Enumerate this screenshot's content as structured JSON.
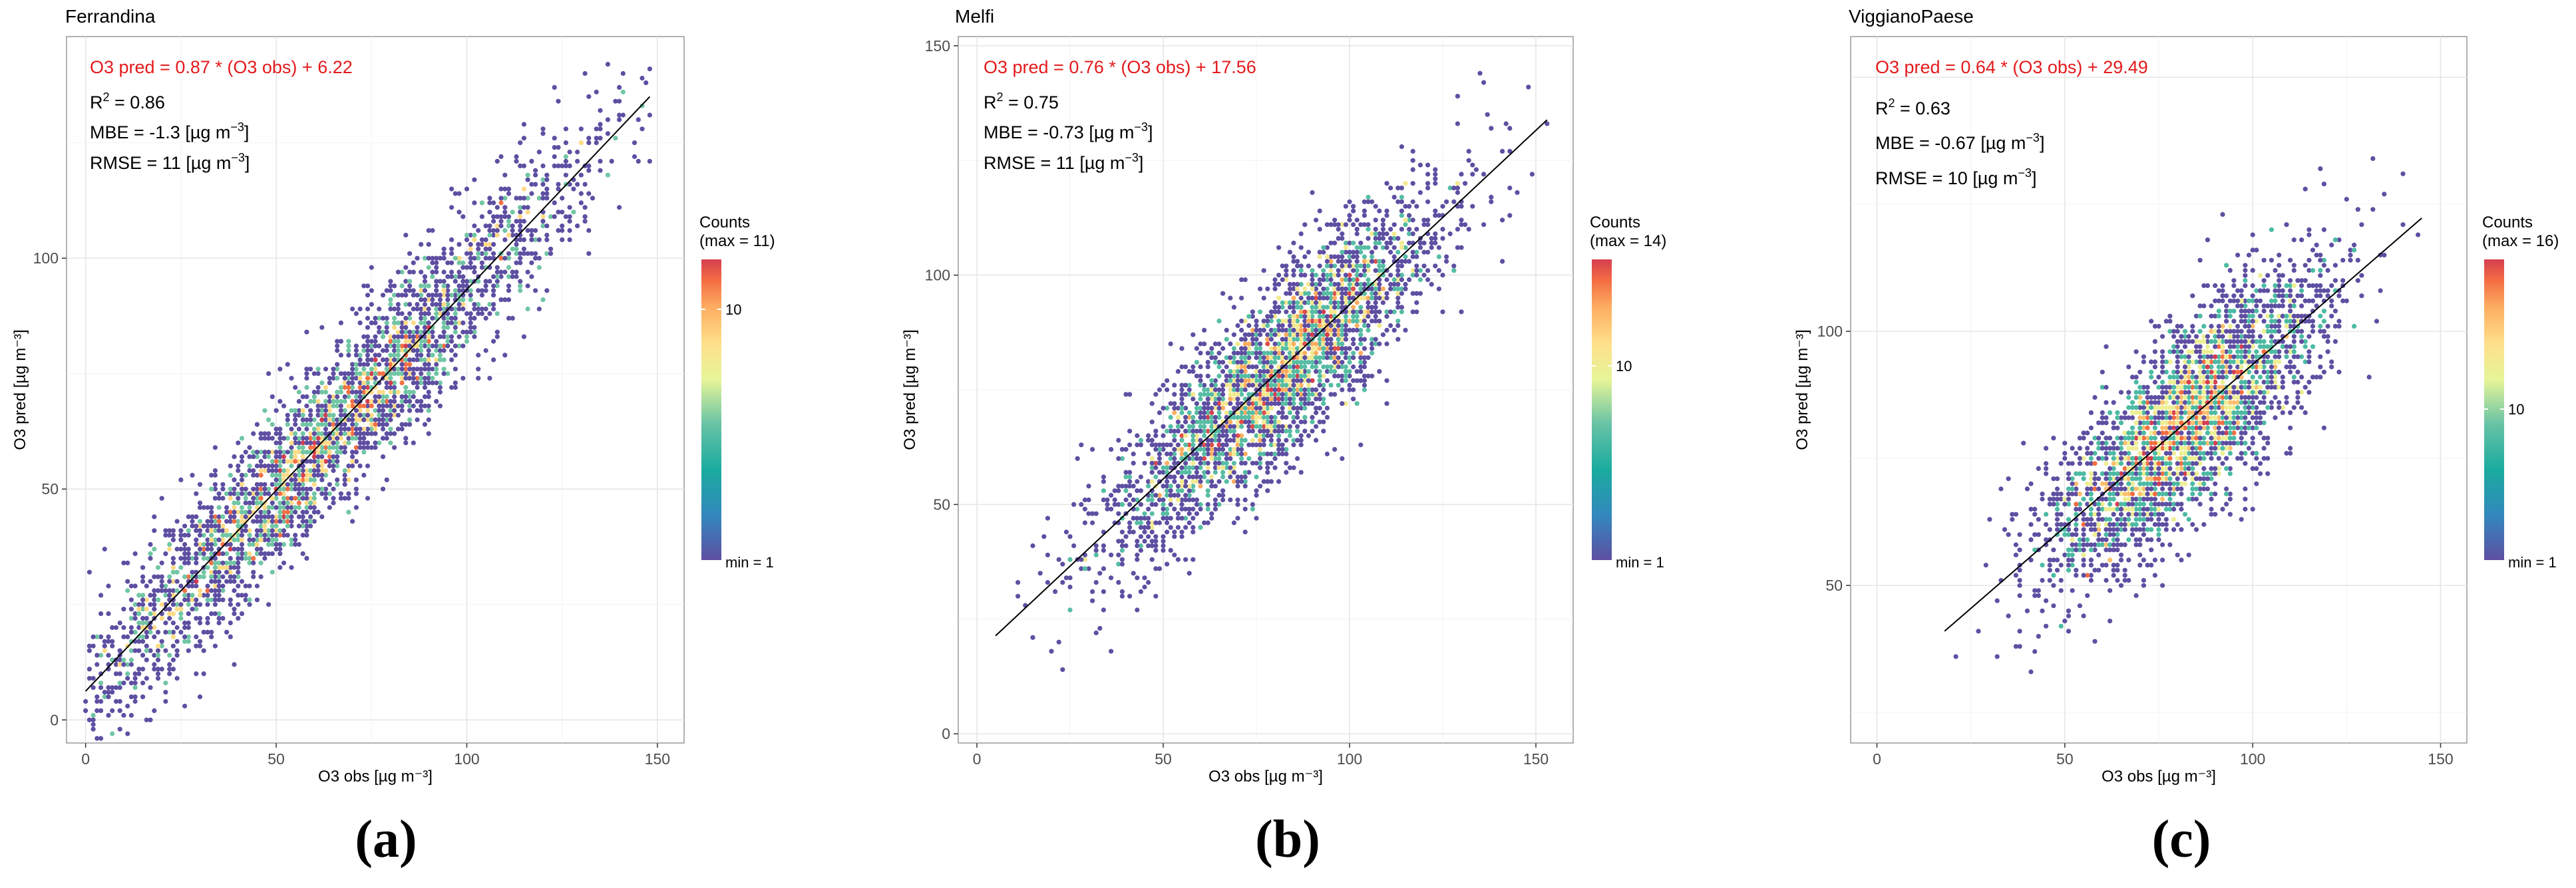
{
  "chart_data": [
    {
      "type": "scatter",
      "title": "Ferrandina",
      "panel_label": "(a)",
      "xlabel": "O3 obs  [µg m⁻³]",
      "ylabel": "O3 pred  [µg m⁻³]",
      "xlim": [
        -5,
        157
      ],
      "ylim": [
        -5,
        148
      ],
      "xticks": [
        0,
        50,
        100,
        150
      ],
      "yticks": [
        0,
        50,
        100
      ],
      "grid": true,
      "fit": {
        "slope": 0.87,
        "intercept": 6.22,
        "x_range": [
          0,
          148
        ]
      },
      "equation": "O3 pred = 0.87 * (O3 obs) + 6.22",
      "r2": "0.86",
      "mbe": "-1.3",
      "rmse": "11",
      "legend": {
        "title": "Counts",
        "max_label": "(max = 11)",
        "min_label": "min = 1",
        "tick_label": "10",
        "tick_value": 10,
        "max": 11,
        "placement": "right"
      },
      "cloud": {
        "center_x": 62,
        "spread": 34,
        "x_min": 0,
        "x_max": 150,
        "resid_sd": 8.5,
        "n_points": 3400,
        "seed": 11
      }
    },
    {
      "type": "scatter",
      "title": "Melfi",
      "panel_label": "(b)",
      "xlabel": "O3 obs  [µg m⁻³]",
      "ylabel": "O3 pred  [µg m⁻³]",
      "xlim": [
        -5,
        160
      ],
      "ylim": [
        -2,
        152
      ],
      "xticks": [
        0,
        50,
        100,
        150
      ],
      "yticks": [
        0,
        50,
        100,
        150
      ],
      "grid": true,
      "fit": {
        "slope": 0.76,
        "intercept": 17.56,
        "x_range": [
          5,
          153
        ]
      },
      "equation": "O3 pred = 0.76 * (O3 obs) + 17.56",
      "r2": "0.75",
      "mbe": "-0.73",
      "rmse": "11",
      "legend": {
        "title": "Counts",
        "max_label": "(max = 14)",
        "min_label": "min = 1",
        "tick_label": "10",
        "tick_value": 10,
        "max": 14,
        "placement": "right"
      },
      "cloud": {
        "center_x": 80,
        "spread": 22,
        "x_min": 4,
        "x_max": 155,
        "resid_sd": 9.5,
        "n_points": 3400,
        "seed": 22
      }
    },
    {
      "type": "scatter",
      "title": "ViggianoPaese",
      "panel_label": "(c)",
      "xlabel": "O3 obs  [µg m⁻³]",
      "ylabel": "O3 pred  [µg m⁻³]",
      "xlim": [
        -7,
        157
      ],
      "ylim": [
        19,
        158
      ],
      "xticks": [
        0,
        50,
        100,
        150
      ],
      "yticks": [
        50,
        100
      ],
      "grid": true,
      "fit": {
        "slope": 0.64,
        "intercept": 29.49,
        "x_range": [
          18,
          145
        ]
      },
      "equation": "O3 pred = 0.64 * (O3 obs) + 29.49",
      "r2": "0.63",
      "mbe": "-0.67",
      "rmse": "10",
      "legend": {
        "title": "Counts",
        "max_label": "(max = 16)",
        "min_label": "min = 1",
        "tick_label": "10",
        "tick_value": 10,
        "max": 16,
        "placement": "right"
      },
      "cloud": {
        "center_x": 82,
        "spread": 18,
        "x_min": 17,
        "x_max": 145,
        "resid_sd": 9.0,
        "n_points": 3400,
        "seed": 33
      }
    }
  ]
}
